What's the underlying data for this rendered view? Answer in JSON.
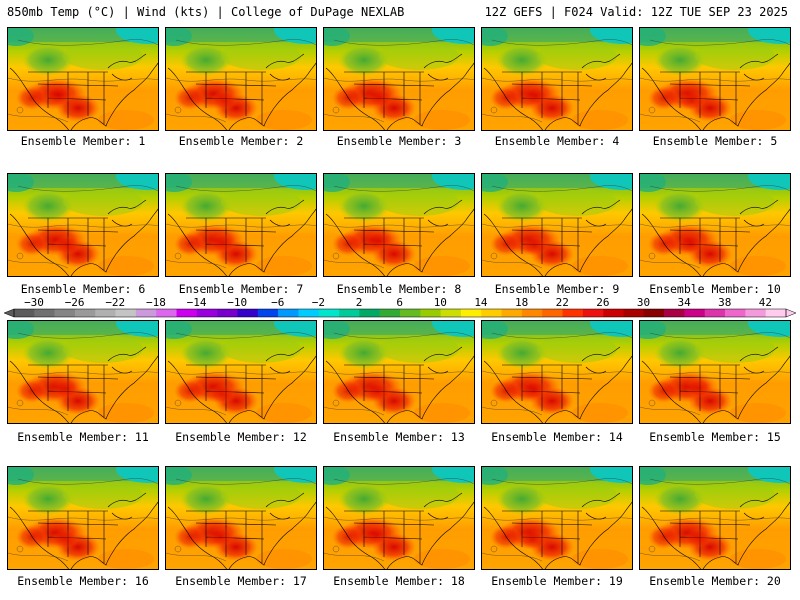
{
  "header": {
    "left": "850mb Temp (°C) | Wind (kts) | College of DuPage NEXLAB",
    "right": "12Z GEFS | F024 Valid: 12Z TUE SEP 23 2025"
  },
  "members": [
    "Ensemble Member: 1",
    "Ensemble Member: 2",
    "Ensemble Member: 3",
    "Ensemble Member: 4",
    "Ensemble Member: 5",
    "Ensemble Member: 6",
    "Ensemble Member: 7",
    "Ensemble Member: 8",
    "Ensemble Member: 9",
    "Ensemble Member: 10",
    "Ensemble Member: 11",
    "Ensemble Member: 12",
    "Ensemble Member: 13",
    "Ensemble Member: 14",
    "Ensemble Member: 15",
    "Ensemble Member: 16",
    "Ensemble Member: 17",
    "Ensemble Member: 18",
    "Ensemble Member: 19",
    "Ensemble Member: 20"
  ],
  "colorbar": {
    "labels": [
      "−30",
      "−26",
      "−22",
      "−18",
      "−14",
      "−10",
      "−6",
      "−2",
      "2",
      "6",
      "10",
      "14",
      "18",
      "22",
      "26",
      "30",
      "34",
      "38",
      "42"
    ],
    "colors": [
      "#5c5c5c",
      "#707070",
      "#858585",
      "#9a9a9a",
      "#b0b0b0",
      "#c4c4c4",
      "#cc99dd",
      "#dd66ee",
      "#cc00ee",
      "#9900dd",
      "#7700cc",
      "#3300cc",
      "#0044ee",
      "#0099ff",
      "#00ccff",
      "#00e6cc",
      "#00cc99",
      "#00aa66",
      "#33aa33",
      "#66bb22",
      "#99cc00",
      "#ccdd00",
      "#ffee00",
      "#ffcc00",
      "#ffaa00",
      "#ff8800",
      "#ff6600",
      "#ff3300",
      "#ee1111",
      "#cc0000",
      "#aa0000",
      "#880000",
      "#aa0044",
      "#cc0088",
      "#dd33aa",
      "#ee66cc",
      "#f599dd",
      "#ffccee"
    ]
  }
}
